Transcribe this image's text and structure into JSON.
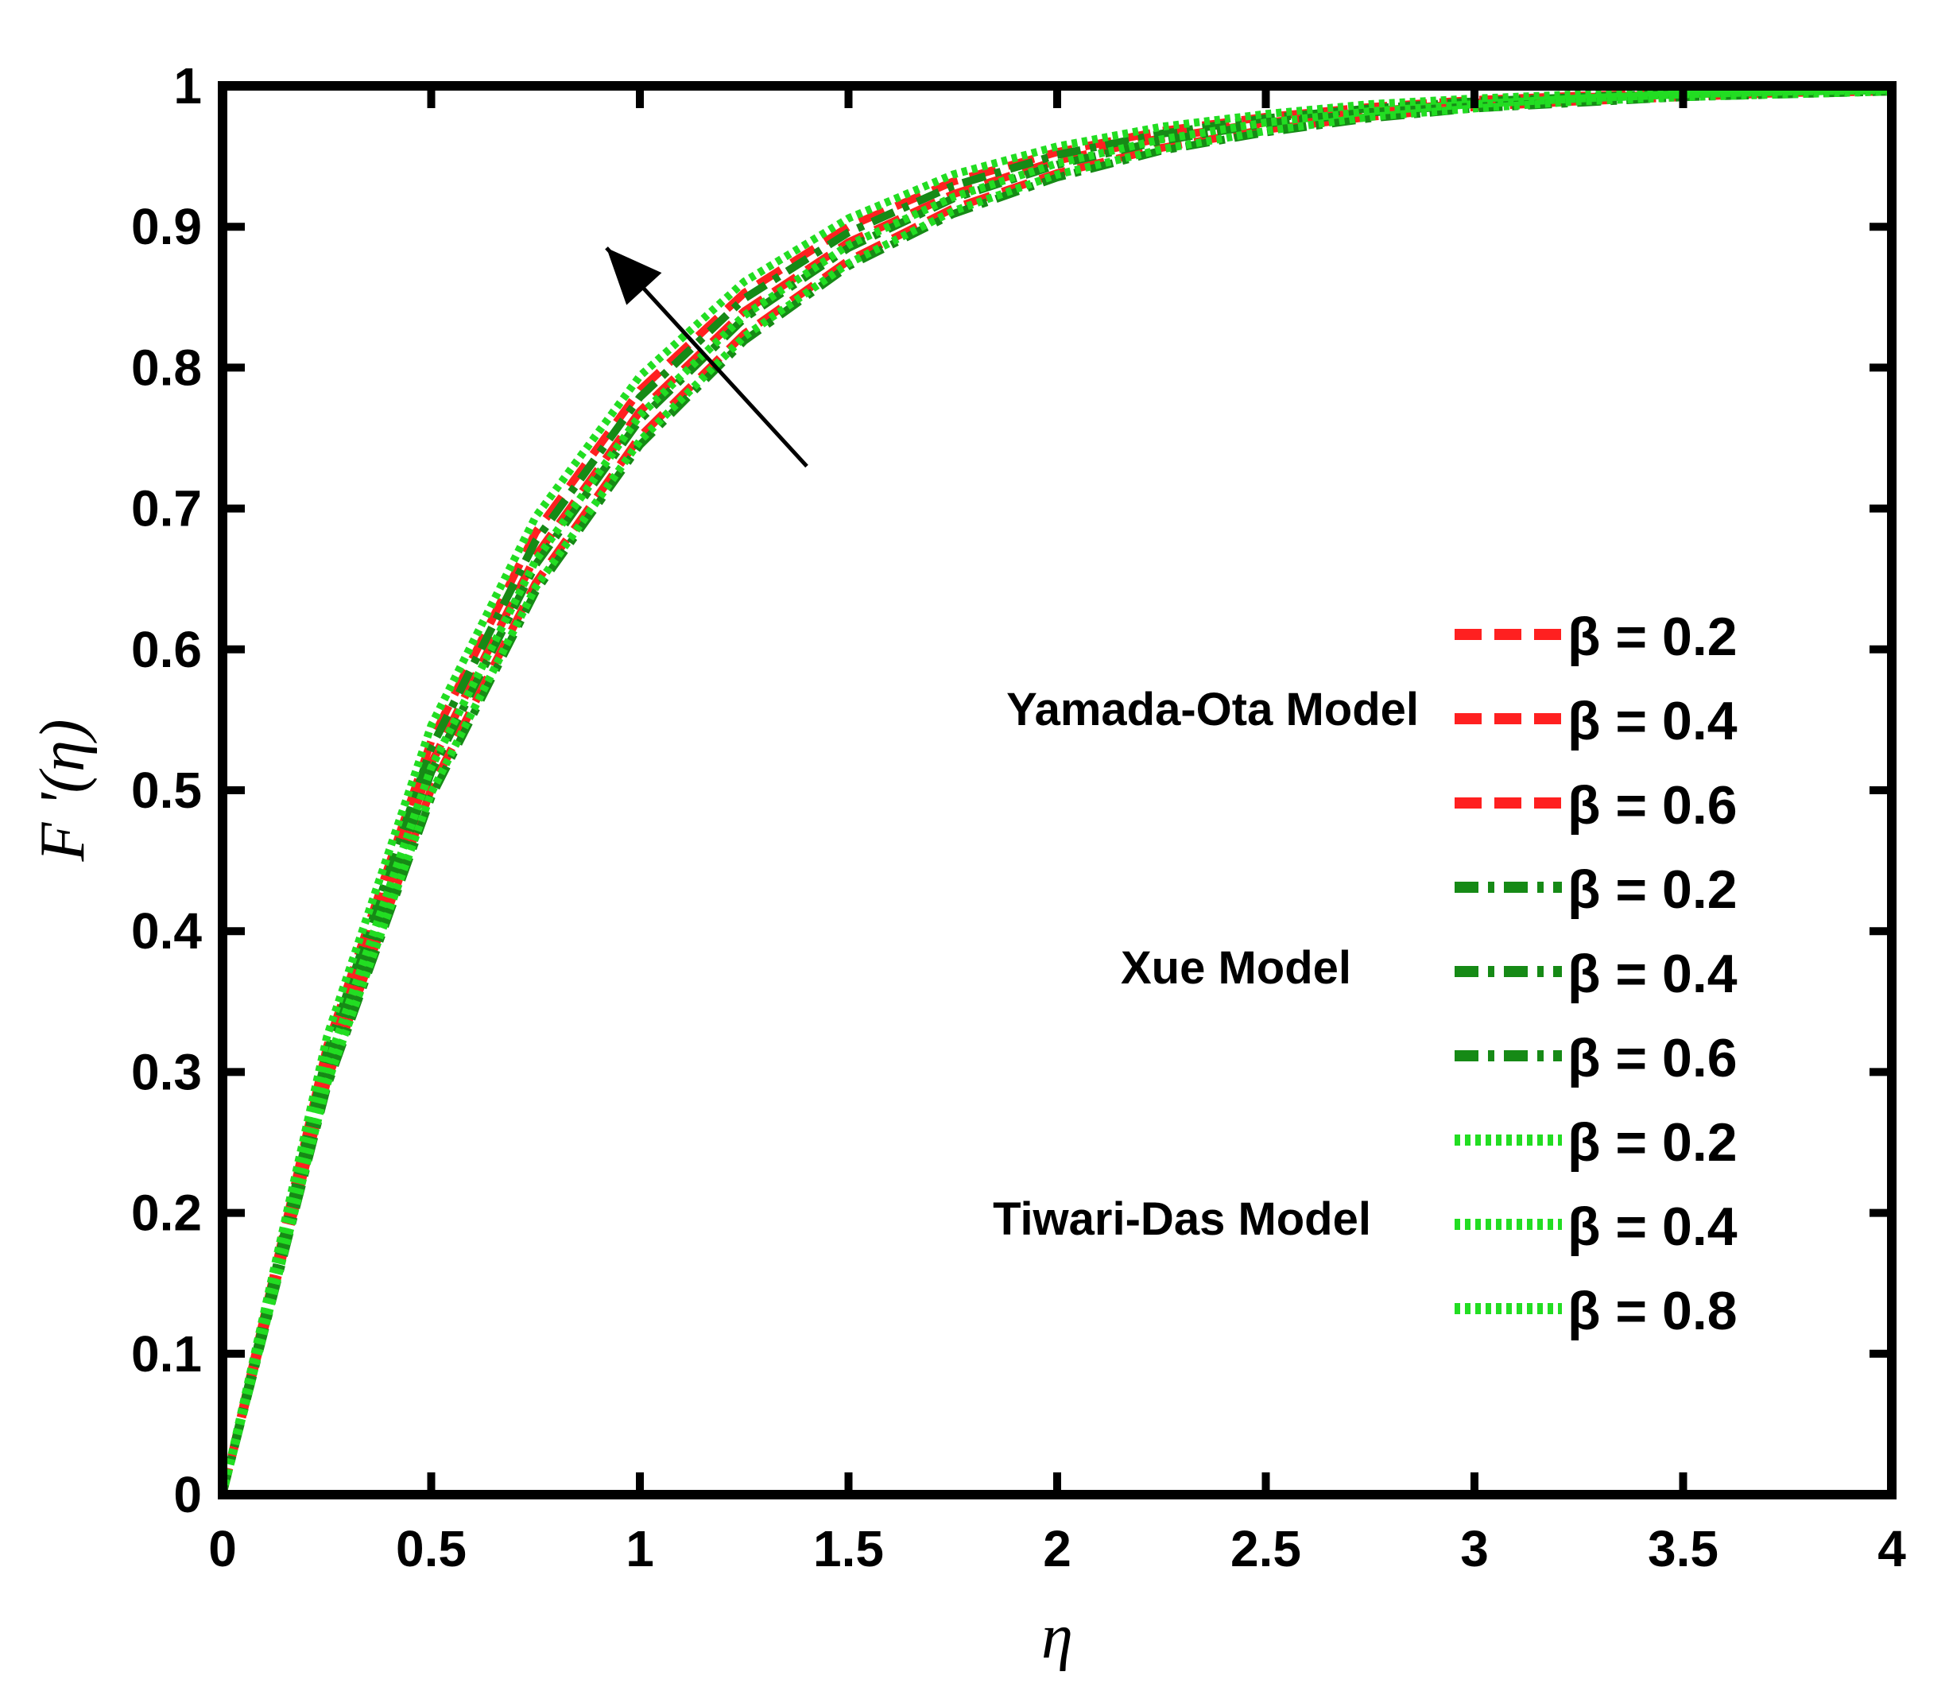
{
  "chart_data": {
    "type": "line",
    "title": "",
    "xlabel": "η",
    "ylabel": "F '(η)",
    "xlim": [
      0,
      4
    ],
    "ylim": [
      0,
      1
    ],
    "xticks": [
      "0",
      "0.5",
      "1",
      "1.5",
      "2",
      "2.5",
      "3",
      "3.5",
      "4"
    ],
    "yticks": [
      "0",
      "0.1",
      "0.2",
      "0.3",
      "0.4",
      "0.5",
      "0.6",
      "0.7",
      "0.8",
      "0.9",
      "1"
    ],
    "grid": false,
    "legend_position": "right",
    "groups": [
      {
        "label": "Yamada-Ota Model",
        "color": "#ff2020",
        "dash": "dashed"
      },
      {
        "label": "Xue Model",
        "color": "#168a16",
        "dash": "dash-dot"
      },
      {
        "label": "Tiwari-Das Model",
        "color": "#22dd22",
        "dash": "dotted"
      }
    ],
    "x": [
      0,
      0.25,
      0.5,
      0.75,
      1,
      1.25,
      1.5,
      1.75,
      2,
      2.25,
      2.5,
      2.75,
      3,
      3.25,
      3.5,
      3.75,
      4
    ],
    "series": [
      {
        "name": "β = 0.2",
        "group": 0,
        "values": [
          0,
          0.293,
          0.501,
          0.647,
          0.751,
          0.824,
          0.876,
          0.913,
          0.938,
          0.956,
          0.969,
          0.978,
          0.985,
          0.989,
          0.992,
          0.995,
          0.996
        ]
      },
      {
        "name": "β = 0.4",
        "group": 0,
        "values": [
          0,
          0.306,
          0.519,
          0.666,
          0.769,
          0.84,
          0.889,
          0.923,
          0.947,
          0.963,
          0.974,
          0.982,
          0.988,
          0.992,
          0.994,
          0.996,
          0.997
        ]
      },
      {
        "name": "β = 0.6",
        "group": 0,
        "values": [
          0,
          0.318,
          0.535,
          0.683,
          0.784,
          0.853,
          0.9,
          0.932,
          0.953,
          0.968,
          0.978,
          0.985,
          0.99,
          0.993,
          0.995,
          0.997,
          0.998
        ]
      },
      {
        "name": "β = 0.2",
        "group": 1,
        "values": [
          0,
          0.289,
          0.495,
          0.641,
          0.745,
          0.819,
          0.872,
          0.909,
          0.935,
          0.954,
          0.967,
          0.977,
          0.984,
          0.988,
          0.992,
          0.994,
          0.996
        ]
      },
      {
        "name": "β = 0.4",
        "group": 1,
        "values": [
          0,
          0.302,
          0.513,
          0.66,
          0.763,
          0.835,
          0.885,
          0.92,
          0.944,
          0.961,
          0.973,
          0.981,
          0.987,
          0.991,
          0.994,
          0.996,
          0.997
        ]
      },
      {
        "name": "β = 0.6",
        "group": 1,
        "values": [
          0,
          0.314,
          0.53,
          0.677,
          0.779,
          0.849,
          0.896,
          0.929,
          0.951,
          0.966,
          0.977,
          0.984,
          0.989,
          0.992,
          0.995,
          0.996,
          0.997
        ]
      },
      {
        "name": "β = 0.2",
        "group": 2,
        "values": [
          0,
          0.291,
          0.498,
          0.644,
          0.748,
          0.822,
          0.874,
          0.911,
          0.937,
          0.955,
          0.968,
          0.978,
          0.984,
          0.989,
          0.992,
          0.994,
          0.996
        ]
      },
      {
        "name": "β = 0.4",
        "group": 2,
        "values": [
          0,
          0.304,
          0.516,
          0.663,
          0.766,
          0.837,
          0.887,
          0.921,
          0.945,
          0.962,
          0.974,
          0.982,
          0.987,
          0.991,
          0.994,
          0.996,
          0.997
        ]
      },
      {
        "name": "β = 0.8",
        "group": 2,
        "values": [
          0,
          0.325,
          0.546,
          0.694,
          0.794,
          0.861,
          0.906,
          0.937,
          0.957,
          0.971,
          0.98,
          0.987,
          0.991,
          0.994,
          0.996,
          0.997,
          0.998
        ]
      }
    ],
    "annotation": {
      "type": "arrow",
      "from": [
        1.4,
        0.73
      ],
      "to": [
        0.92,
        0.885
      ],
      "meaning": "increasing β"
    }
  }
}
